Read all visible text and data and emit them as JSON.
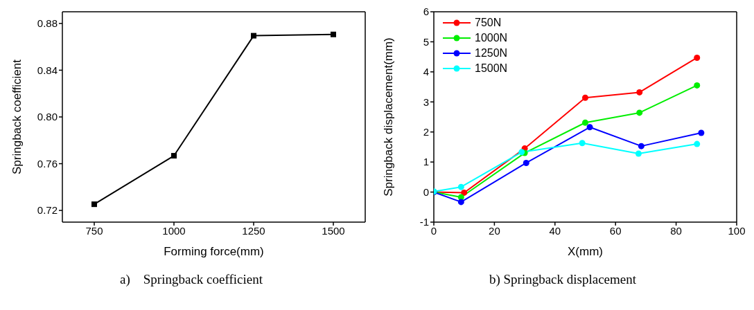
{
  "chart_data": [
    {
      "type": "line",
      "xlabel": "Forming force(mm)",
      "ylabel": "Springback coefficient",
      "annotations": [
        "a)    Springback coefficient"
      ],
      "x": [
        750,
        1000,
        1250,
        1500
      ],
      "xlim": [
        650,
        1600
      ],
      "xticks": [
        750,
        1000,
        1250,
        1500
      ],
      "ylim": [
        0.71,
        0.89
      ],
      "yticks": [
        {
          "value": 0.72,
          "label": "0.72"
        },
        {
          "value": 0.76,
          "label": "0.76"
        },
        {
          "value": 0.8,
          "label": "0.80"
        },
        {
          "value": 0.84,
          "label": "0.84"
        },
        {
          "value": 0.88,
          "label": "0.88"
        }
      ],
      "marker": "square",
      "line_style": "solid",
      "series": [
        {
          "color": "#000000",
          "values": [
            0.7253,
            0.7668,
            0.8695,
            0.8706
          ]
        }
      ]
    },
    {
      "type": "line",
      "xlabel": "X(mm)",
      "ylabel": "Springback displacement(mm)",
      "annotations": [
        "b) Springback displacement"
      ],
      "xlim": [
        0,
        100
      ],
      "xticks": [
        0,
        20,
        40,
        60,
        80,
        100
      ],
      "ylim": [
        -1,
        6
      ],
      "yticks": [
        -1,
        0,
        1,
        2,
        3,
        4,
        5,
        6
      ],
      "legend": "top left",
      "marker": "circle",
      "line_style": "solid",
      "series": [
        {
          "name": "750N",
          "color": "#ff0000",
          "x": [
            0,
            10,
            30,
            50,
            67.9,
            86.9
          ],
          "values": [
            0,
            -0.02,
            1.45,
            3.14,
            3.32,
            4.47
          ]
        },
        {
          "name": "1000N",
          "color": "#00ee00",
          "x": [
            0,
            9,
            30,
            50,
            67.9,
            86.9
          ],
          "values": [
            0,
            -0.17,
            1.3,
            2.31,
            2.64,
            3.55
          ]
        },
        {
          "name": "1250N",
          "color": "#0000ff",
          "x": [
            0,
            9,
            30.5,
            51.5,
            68.5,
            88.3
          ],
          "values": [
            0,
            -0.33,
            0.97,
            2.16,
            1.53,
            1.97
          ]
        },
        {
          "name": "1500N",
          "color": "#00ffff",
          "x": [
            0,
            9,
            29,
            49,
            67.6,
            86.9
          ],
          "values": [
            0.02,
            0.17,
            1.33,
            1.63,
            1.28,
            1.6
          ]
        }
      ]
    }
  ]
}
